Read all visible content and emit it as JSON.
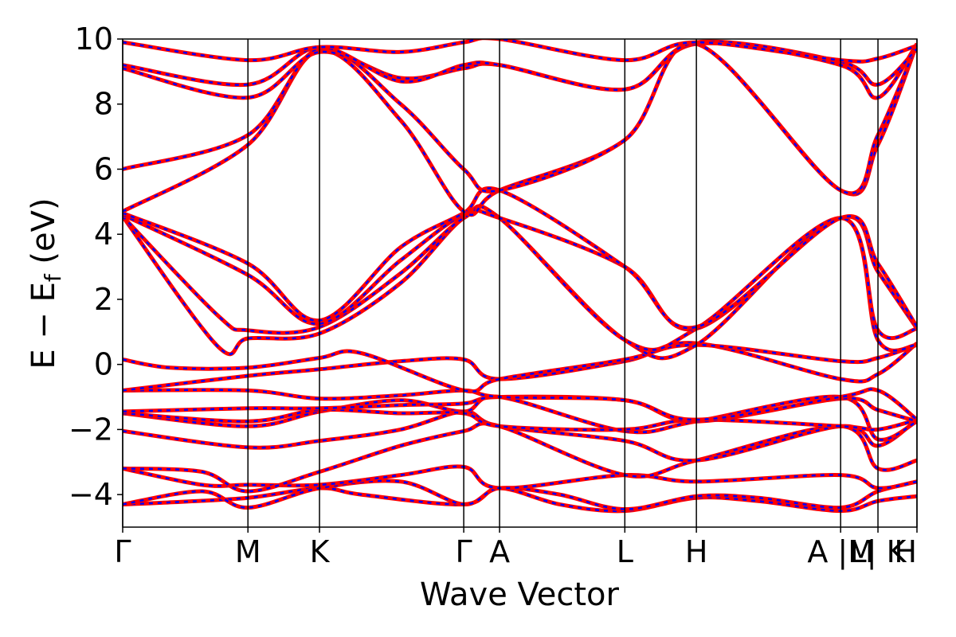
{
  "chart_data": {
    "type": "line",
    "xlabel": "Wave Vector",
    "ylabel": "E − E",
    "ylabel_sub": "f",
    "ylabel_unit": "(eV)",
    "ylim": [
      -5,
      10
    ],
    "yticks": [
      -4,
      -2,
      0,
      2,
      4,
      6,
      8,
      10
    ],
    "xlim": [
      0,
      1
    ],
    "grid": false,
    "line_style": "red solid with blue dashed overlay",
    "colors": {
      "solid": "#ff0000",
      "dashed": "#0000ff",
      "kpath_line": "#000000"
    },
    "kpoints": [
      {
        "label": "Γ",
        "x": 0.0
      },
      {
        "label": "M",
        "x": 0.1577
      },
      {
        "label": "K",
        "x": 0.2478
      },
      {
        "label": "Γ",
        "x": 0.4294
      },
      {
        "label": "A",
        "x": 0.4745
      },
      {
        "label": "L",
        "x": 0.6322
      },
      {
        "label": "H",
        "x": 0.7223
      },
      {
        "label": "A |M",
        "x": 0.9039
      },
      {
        "label": "L| K",
        "x": 0.9509
      },
      {
        "label": "H",
        "x": 1.0
      }
    ],
    "bands": [
      [
        [
          0,
          -4.3
        ],
        [
          0.05,
          -4.25
        ],
        [
          0.1577,
          -4.1
        ],
        [
          0.2478,
          -3.8
        ],
        [
          0.3,
          -4.0
        ],
        [
          0.4294,
          -4.3
        ],
        [
          0.4745,
          -3.8
        ],
        [
          0.55,
          -4.3
        ],
        [
          0.6322,
          -4.5
        ],
        [
          0.7223,
          -4.1
        ],
        [
          0.8,
          -4.2
        ],
        [
          0.9039,
          -4.5
        ],
        [
          0.9509,
          -4.2
        ],
        [
          1.0,
          -4.05
        ]
      ],
      [
        [
          0,
          -4.3
        ],
        [
          0.1,
          -3.9
        ],
        [
          0.1577,
          -4.4
        ],
        [
          0.2478,
          -3.8
        ],
        [
          0.35,
          -3.6
        ],
        [
          0.4294,
          -4.3
        ],
        [
          0.4745,
          -3.8
        ],
        [
          0.55,
          -4.0
        ],
        [
          0.6322,
          -4.45
        ],
        [
          0.7223,
          -4.05
        ],
        [
          0.8,
          -4.1
        ],
        [
          0.9039,
          -4.4
        ],
        [
          0.9509,
          -3.9
        ],
        [
          1.0,
          -3.6
        ]
      ],
      [
        [
          0,
          -3.2
        ],
        [
          0.1,
          -3.7
        ],
        [
          0.1577,
          -3.7
        ],
        [
          0.2478,
          -3.7
        ],
        [
          0.35,
          -3.4
        ],
        [
          0.4294,
          -3.15
        ],
        [
          0.4745,
          -3.8
        ],
        [
          0.6322,
          -3.4
        ],
        [
          0.7223,
          -3.6
        ],
        [
          0.9039,
          -3.4
        ],
        [
          0.9509,
          -3.8
        ],
        [
          1.0,
          -3.6
        ]
      ],
      [
        [
          0,
          -3.2
        ],
        [
          0.1,
          -3.3
        ],
        [
          0.1577,
          -3.9
        ],
        [
          0.2478,
          -3.3
        ],
        [
          0.35,
          -2.5
        ],
        [
          0.4294,
          -2.05
        ],
        [
          0.4745,
          -1.9
        ],
        [
          0.6322,
          -3.4
        ],
        [
          0.7223,
          -2.95
        ],
        [
          0.9039,
          -1.9
        ],
        [
          0.9509,
          -3.2
        ],
        [
          1.0,
          -2.95
        ]
      ],
      [
        [
          0,
          -2.05
        ],
        [
          0.1577,
          -2.55
        ],
        [
          0.2478,
          -2.35
        ],
        [
          0.35,
          -2.0
        ],
        [
          0.4294,
          -1.45
        ],
        [
          0.4745,
          -1.9
        ],
        [
          0.6322,
          -2.35
        ],
        [
          0.7223,
          -2.95
        ],
        [
          0.9039,
          -1.9
        ],
        [
          0.9509,
          -2.5
        ],
        [
          1.0,
          -1.7
        ]
      ],
      [
        [
          0,
          -1.5
        ],
        [
          0.1577,
          -1.9
        ],
        [
          0.2478,
          -1.45
        ],
        [
          0.35,
          -1.1
        ],
        [
          0.4294,
          -1.45
        ],
        [
          0.4745,
          -1.0
        ],
        [
          0.6322,
          -2.05
        ],
        [
          0.7223,
          -1.75
        ],
        [
          0.9039,
          -1.0
        ],
        [
          0.9509,
          -2.3
        ],
        [
          1.0,
          -1.75
        ]
      ],
      [
        [
          0,
          -1.5
        ],
        [
          0.1577,
          -1.75
        ],
        [
          0.2478,
          -1.4
        ],
        [
          0.35,
          -1.5
        ],
        [
          0.4294,
          -1.5
        ],
        [
          0.4745,
          -1.9
        ],
        [
          0.6322,
          -2.0
        ],
        [
          0.7223,
          -1.7
        ],
        [
          0.9039,
          -1.9
        ],
        [
          0.9509,
          -2.0
        ],
        [
          1.0,
          -1.7
        ]
      ],
      [
        [
          0,
          -1.45
        ],
        [
          0.1577,
          -1.35
        ],
        [
          0.2478,
          -1.35
        ],
        [
          0.35,
          -1.25
        ],
        [
          0.4294,
          -1.2
        ],
        [
          0.4745,
          -1.0
        ],
        [
          0.6322,
          -1.1
        ],
        [
          0.7223,
          -1.75
        ],
        [
          0.9039,
          -1.05
        ],
        [
          0.9509,
          -1.4
        ],
        [
          1.0,
          -1.75
        ]
      ],
      [
        [
          0,
          -0.8
        ],
        [
          0.1577,
          -0.8
        ],
        [
          0.2478,
          -1.05
        ],
        [
          0.35,
          -0.95
        ],
        [
          0.4294,
          -0.8
        ],
        [
          0.4745,
          -1.0
        ],
        [
          0.6322,
          -1.1
        ],
        [
          0.7223,
          -1.7
        ],
        [
          0.9039,
          -1.0
        ],
        [
          0.9509,
          -0.8
        ],
        [
          1.0,
          -1.7
        ]
      ],
      [
        [
          0,
          -0.8
        ],
        [
          0.1577,
          -0.35
        ],
        [
          0.2478,
          -0.15
        ],
        [
          0.35,
          0.1
        ],
        [
          0.4294,
          0.15
        ],
        [
          0.4745,
          -0.45
        ],
        [
          0.6322,
          0.1
        ],
        [
          0.7223,
          0.65
        ],
        [
          0.9039,
          -0.45
        ],
        [
          0.9509,
          -0.3
        ],
        [
          1.0,
          0.65
        ]
      ],
      [
        [
          0,
          0.15
        ],
        [
          0.06,
          -0.1
        ],
        [
          0.1577,
          -0.1
        ],
        [
          0.2478,
          0.2
        ],
        [
          0.3,
          0.35
        ],
        [
          0.4294,
          -0.8
        ],
        [
          0.4745,
          -0.45
        ],
        [
          0.6322,
          0.15
        ],
        [
          0.7223,
          0.6
        ],
        [
          0.9039,
          0.1
        ],
        [
          0.9509,
          0.2
        ],
        [
          1.0,
          0.6
        ]
      ],
      [
        [
          0,
          4.55
        ],
        [
          0.12,
          0.55
        ],
        [
          0.1577,
          0.8
        ],
        [
          0.2478,
          0.95
        ],
        [
          0.35,
          2.5
        ],
        [
          0.4294,
          4.5
        ],
        [
          0.4745,
          4.5
        ],
        [
          0.6322,
          0.75
        ],
        [
          0.7223,
          0.6
        ],
        [
          0.9039,
          4.5
        ],
        [
          0.9509,
          0.75
        ],
        [
          1.0,
          0.6
        ]
      ],
      [
        [
          0,
          4.55
        ],
        [
          0.12,
          1.5
        ],
        [
          0.1577,
          1.05
        ],
        [
          0.2478,
          1.15
        ],
        [
          0.35,
          2.8
        ],
        [
          0.4294,
          4.5
        ],
        [
          0.4745,
          4.5
        ],
        [
          0.6322,
          0.75
        ],
        [
          0.7223,
          1.1
        ],
        [
          0.9039,
          4.5
        ],
        [
          0.9509,
          1.05
        ],
        [
          1.0,
          1.1
        ]
      ],
      [
        [
          0,
          4.6
        ],
        [
          0.1577,
          2.75
        ],
        [
          0.2478,
          1.25
        ],
        [
          0.35,
          3.2
        ],
        [
          0.4294,
          4.6
        ],
        [
          0.4745,
          4.5
        ],
        [
          0.6322,
          3.0
        ],
        [
          0.7223,
          1.1
        ],
        [
          0.9039,
          4.5
        ],
        [
          0.9509,
          2.85
        ],
        [
          1.0,
          1.1
        ]
      ],
      [
        [
          0,
          4.65
        ],
        [
          0.1577,
          3.1
        ],
        [
          0.2478,
          1.35
        ],
        [
          0.35,
          3.6
        ],
        [
          0.4294,
          4.65
        ],
        [
          0.4745,
          5.35
        ],
        [
          0.6322,
          3.0
        ],
        [
          0.7223,
          1.15
        ],
        [
          0.9039,
          4.5
        ],
        [
          0.9509,
          3.1
        ],
        [
          1.0,
          1.15
        ]
      ],
      [
        [
          0,
          4.7
        ],
        [
          0.1577,
          6.75
        ],
        [
          0.2478,
          9.65
        ],
        [
          0.35,
          7.5
        ],
        [
          0.4294,
          4.7
        ],
        [
          0.4745,
          5.35
        ],
        [
          0.6322,
          6.9
        ],
        [
          0.7223,
          9.85
        ],
        [
          0.9039,
          5.35
        ],
        [
          0.9509,
          6.75
        ],
        [
          1.0,
          9.85
        ]
      ],
      [
        [
          0,
          6.0
        ],
        [
          0.1577,
          7.05
        ],
        [
          0.2478,
          9.7
        ],
        [
          0.35,
          8.0
        ],
        [
          0.4294,
          6.0
        ],
        [
          0.4745,
          5.35
        ],
        [
          0.6322,
          6.9
        ],
        [
          0.7223,
          9.85
        ],
        [
          0.9039,
          5.35
        ],
        [
          0.9509,
          7.05
        ],
        [
          1.0,
          9.85
        ]
      ],
      [
        [
          0,
          9.1
        ],
        [
          0.1577,
          8.2
        ],
        [
          0.2478,
          9.6
        ],
        [
          0.35,
          8.8
        ],
        [
          0.4294,
          9.1
        ],
        [
          0.4745,
          9.2
        ],
        [
          0.6322,
          8.45
        ],
        [
          0.7223,
          9.85
        ],
        [
          0.9039,
          9.2
        ],
        [
          0.9509,
          8.2
        ],
        [
          1.0,
          9.85
        ]
      ],
      [
        [
          0,
          9.2
        ],
        [
          0.1577,
          8.6
        ],
        [
          0.2478,
          9.75
        ],
        [
          0.35,
          8.7
        ],
        [
          0.4294,
          9.2
        ],
        [
          0.4745,
          9.2
        ],
        [
          0.6322,
          8.45
        ],
        [
          0.7223,
          9.9
        ],
        [
          0.9039,
          9.3
        ],
        [
          0.9509,
          8.6
        ],
        [
          1.0,
          9.7
        ]
      ],
      [
        [
          0,
          9.9
        ],
        [
          0.1577,
          9.35
        ],
        [
          0.2478,
          9.75
        ],
        [
          0.35,
          9.6
        ],
        [
          0.4294,
          9.9
        ],
        [
          0.4745,
          10.0
        ],
        [
          0.6322,
          9.35
        ],
        [
          0.7223,
          9.9
        ],
        [
          0.9039,
          9.35
        ],
        [
          0.9509,
          9.4
        ],
        [
          1.0,
          9.8
        ]
      ]
    ]
  }
}
